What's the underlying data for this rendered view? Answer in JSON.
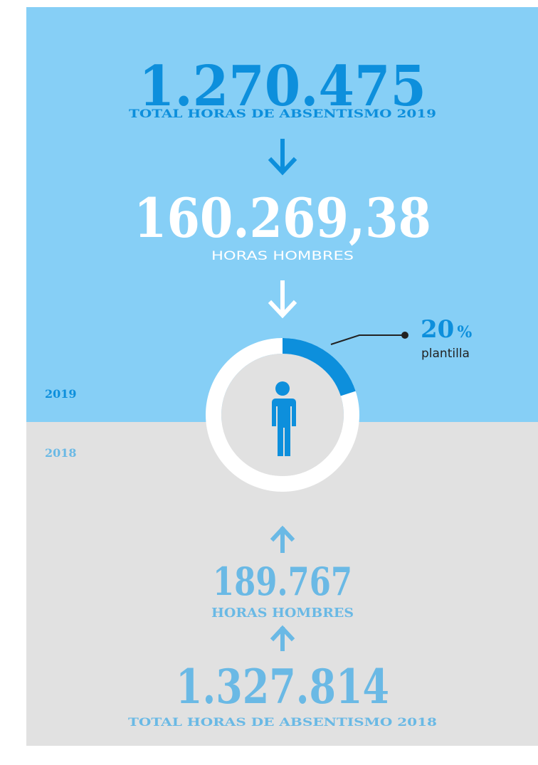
{
  "top": {
    "total": "1.270.475",
    "total_label": "TOTAL HORAS DE ABSENTISMO 2019",
    "men_hours": "160.269,38",
    "men_label": "HORAS HOMBRES"
  },
  "donut": {
    "value": 20,
    "unit": "%",
    "caption": "plantilla"
  },
  "years": [
    "2019",
    "2018"
  ],
  "bottom": {
    "men_hours": "189.767",
    "men_label": "HORAS HOMBRES",
    "total": "1.327.814",
    "total_label": "TOTAL HORAS DE ABSENTISMO 2018"
  }
}
